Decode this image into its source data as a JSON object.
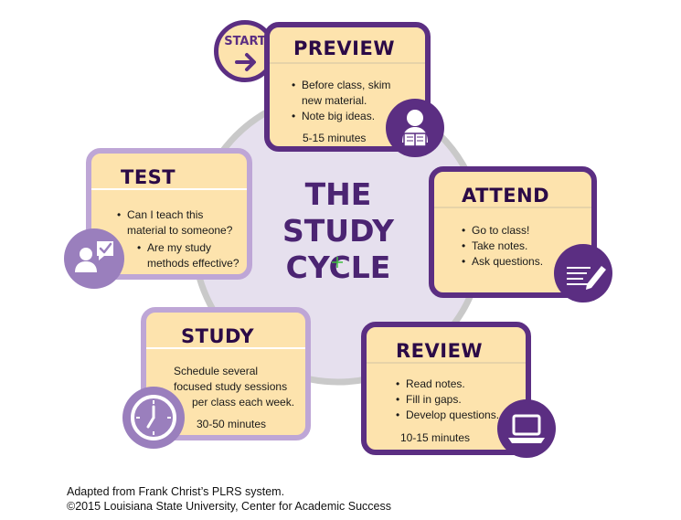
{
  "center": {
    "line1": "THE",
    "line2": "STUDY",
    "line3": "CYCLE"
  },
  "start": {
    "label": "START",
    "arrow": "arrow-right-icon"
  },
  "stages": {
    "preview": {
      "title": "PREVIEW",
      "bullets": [
        "Before class, skim new material.",
        "Note big ideas."
      ],
      "duration": "5-15 minutes",
      "icon": "reading-person-icon"
    },
    "attend": {
      "title": "ATTEND",
      "bullets": [
        "Go to class!",
        "Take notes.",
        "Ask questions."
      ],
      "icon": "notepad-pencil-icon"
    },
    "review": {
      "title": "REVIEW",
      "bullets": [
        "Read notes.",
        "Fill in gaps.",
        "Develop questions."
      ],
      "duration": "10-15 minutes",
      "icon": "laptop-icon"
    },
    "study": {
      "title": "STUDY",
      "text_lines": [
        "Schedule several",
        "focused study sessions",
        "per class each week."
      ],
      "duration": "30-50 minutes",
      "icon": "clock-icon"
    },
    "test": {
      "title": "TEST",
      "bullets": [
        "Can I teach this material to someone?",
        "Are my study methods effective?"
      ],
      "icon": "person-checkmark-icon"
    }
  },
  "footer": {
    "line1": "Adapted from Frank Christ’s PLRS system.",
    "line2": "©2015 Louisiana State University, Center for Academic Success"
  },
  "colors": {
    "dark_purple": "#5b2e82",
    "light_purple": "#bea6d6",
    "circle_fill": "#e6e0ee",
    "card_fill": "#fde3ad",
    "title_purple": "#4b2472"
  }
}
